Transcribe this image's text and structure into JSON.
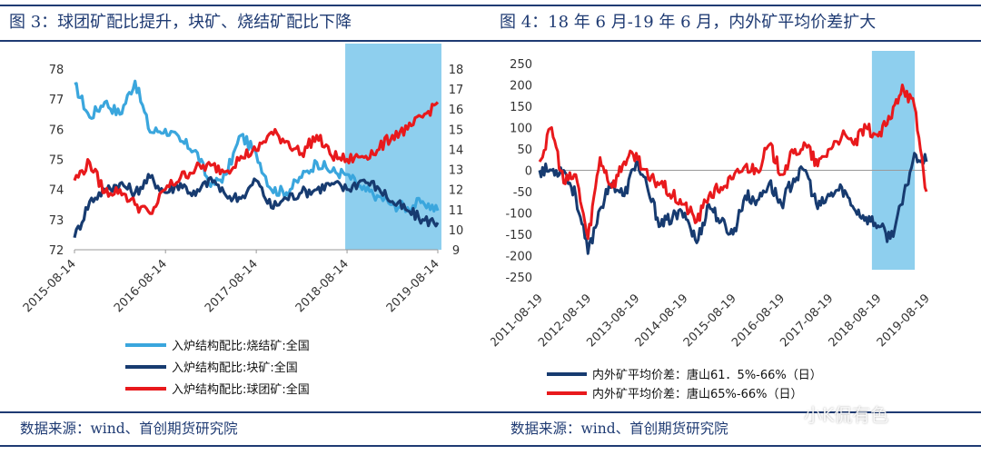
{
  "left": {
    "title": "图 3：球团矿配比提升，块矿、烧结矿配比下降",
    "source": "数据来源：wind、首创期货研究院"
  },
  "right": {
    "title": "图 4：18 年 6 月-19 年 6 月，内外矿平均价差扩大",
    "source": "数据来源：wind、首创期货研究院"
  },
  "watermark": "小K侃有色",
  "chart_data": [
    {
      "type": "line",
      "x_dates": [
        "2015-08-14",
        "2015-10-14",
        "2015-12-14",
        "2016-02-14",
        "2016-04-14",
        "2016-06-14",
        "2016-08-14",
        "2016-10-14",
        "2016-12-14",
        "2017-02-14",
        "2017-04-14",
        "2017-06-14",
        "2017-08-14",
        "2017-10-14",
        "2017-12-14",
        "2018-02-14",
        "2018-04-14",
        "2018-06-14",
        "2018-08-14",
        "2018-10-14",
        "2018-12-14",
        "2019-02-14",
        "2019-04-14",
        "2019-06-14",
        "2019-08-14"
      ],
      "xticks": [
        "2015-08-14",
        "2016-08-14",
        "2017-08-14",
        "2018-08-14",
        "2019-08-14"
      ],
      "ylim_left": [
        72,
        78
      ],
      "yticks_left": [
        "72",
        "73",
        "74",
        "75",
        "76",
        "77",
        "78"
      ],
      "ylim_right": [
        9,
        18
      ],
      "yticks_right": [
        "9",
        "10",
        "11",
        "12",
        "13",
        "14",
        "15",
        "16",
        "17",
        "18"
      ],
      "highlight_range": [
        "2018-08-14",
        "2019-08-14"
      ],
      "highlight_color": "#8ecfee",
      "series": [
        {
          "name": "入炉结构配比:烧结矿:全国",
          "axis": "left",
          "color": "#3aa6dd",
          "values": [
            77.5,
            76.4,
            76.9,
            76.5,
            77.6,
            75.9,
            76.0,
            75.6,
            75.3,
            74.1,
            74.5,
            75.8,
            75.2,
            74.0,
            73.9,
            74.4,
            74.9,
            74.6,
            74.5,
            74.0,
            73.8,
            73.5,
            73.4,
            73.6,
            73.3
          ]
        },
        {
          "name": "入炉结构配比:块矿:全国",
          "axis": "left",
          "color": "#173b70",
          "values": [
            72.4,
            73.6,
            74.0,
            74.2,
            73.9,
            74.4,
            73.9,
            74.2,
            73.8,
            74.4,
            73.8,
            73.7,
            74.3,
            73.4,
            73.7,
            73.9,
            74.0,
            74.2,
            74.0,
            74.3,
            74.1,
            73.6,
            73.3,
            73.0,
            72.9
          ]
        },
        {
          "name": "入炉结构配比:球团矿:全国",
          "axis": "left",
          "color": "#e8191c",
          "values": [
            74.3,
            74.9,
            73.9,
            74.0,
            73.5,
            73.2,
            74.0,
            74.4,
            74.7,
            74.8,
            74.6,
            75.1,
            75.3,
            75.9,
            75.6,
            75.2,
            75.8,
            75.1,
            75.0,
            75.1,
            75.3,
            75.8,
            76.0,
            76.4,
            76.9
          ]
        }
      ]
    },
    {
      "type": "line",
      "x_dates": [
        "2011-08-19",
        "2011-11-19",
        "2012-02-19",
        "2012-05-19",
        "2012-08-19",
        "2012-11-19",
        "2013-02-19",
        "2013-05-19",
        "2013-08-19",
        "2013-11-19",
        "2014-02-19",
        "2014-05-19",
        "2014-08-19",
        "2014-11-19",
        "2015-02-19",
        "2015-05-19",
        "2015-08-19",
        "2015-11-19",
        "2016-02-19",
        "2016-05-19",
        "2016-08-19",
        "2016-11-19",
        "2017-02-19",
        "2017-05-19",
        "2017-08-19",
        "2017-11-19",
        "2018-02-19",
        "2018-05-19",
        "2018-08-19",
        "2018-11-19",
        "2019-02-19",
        "2019-05-19",
        "2019-08-19"
      ],
      "xticks": [
        "2011-08-19",
        "2012-08-19",
        "2013-08-19",
        "2014-08-19",
        "2015-08-19",
        "2016-08-19",
        "2017-08-19",
        "2018-08-19",
        "2019-08-19"
      ],
      "ylim": [
        -250,
        250
      ],
      "yticks": [
        "250",
        "200",
        "150",
        "100",
        "50",
        "0",
        "-50",
        "-100",
        "-150",
        "-200",
        "-250"
      ],
      "highlight_range": [
        "2018-06-19",
        "2019-06-19"
      ],
      "highlight_color": "#8ecfee",
      "series": [
        {
          "name": "内外矿平均价差：唐山61．5%-66%（日）",
          "color": "#173b70",
          "values": [
            0,
            0,
            0,
            -60,
            -195,
            -90,
            -30,
            -60,
            20,
            -50,
            -130,
            -110,
            -100,
            -170,
            -80,
            -120,
            -150,
            -60,
            -70,
            -30,
            -80,
            -20,
            0,
            -90,
            -60,
            -40,
            -90,
            -110,
            -130,
            -160,
            -80,
            40,
            20
          ]
        },
        {
          "name": "内外矿平均价差：唐山65%-66%（日）",
          "color": "#e8191c",
          "values": [
            20,
            100,
            -30,
            -10,
            -160,
            30,
            -40,
            20,
            40,
            -20,
            -30,
            -60,
            -80,
            -120,
            -60,
            -40,
            -20,
            10,
            0,
            60,
            -10,
            40,
            60,
            10,
            50,
            80,
            60,
            100,
            80,
            120,
            200,
            150,
            -50
          ]
        }
      ]
    }
  ]
}
